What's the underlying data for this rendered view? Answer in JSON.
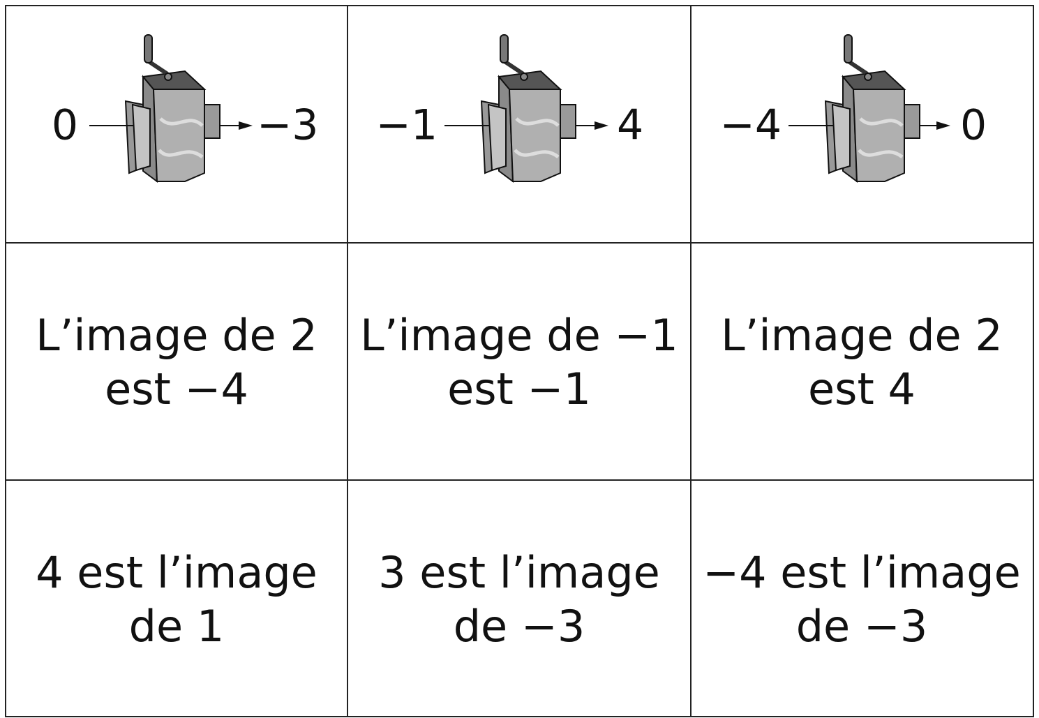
{
  "machines": [
    {
      "input": "0",
      "output": "−3"
    },
    {
      "input": "−1",
      "output": "4"
    },
    {
      "input": "−4",
      "output": "0"
    }
  ],
  "statements": [
    {
      "lines": [
        "L’image de 2",
        "est −4"
      ]
    },
    {
      "lines": [
        "L’image de −1",
        "est −1"
      ]
    },
    {
      "lines": [
        "L’image de 2",
        "est 4"
      ]
    },
    {
      "lines": [
        "4 est l’image",
        "de 1"
      ]
    },
    {
      "lines": [
        "3 est l’image",
        "de −3"
      ]
    },
    {
      "lines": [
        "−4 est l’image",
        "de −3"
      ]
    }
  ]
}
